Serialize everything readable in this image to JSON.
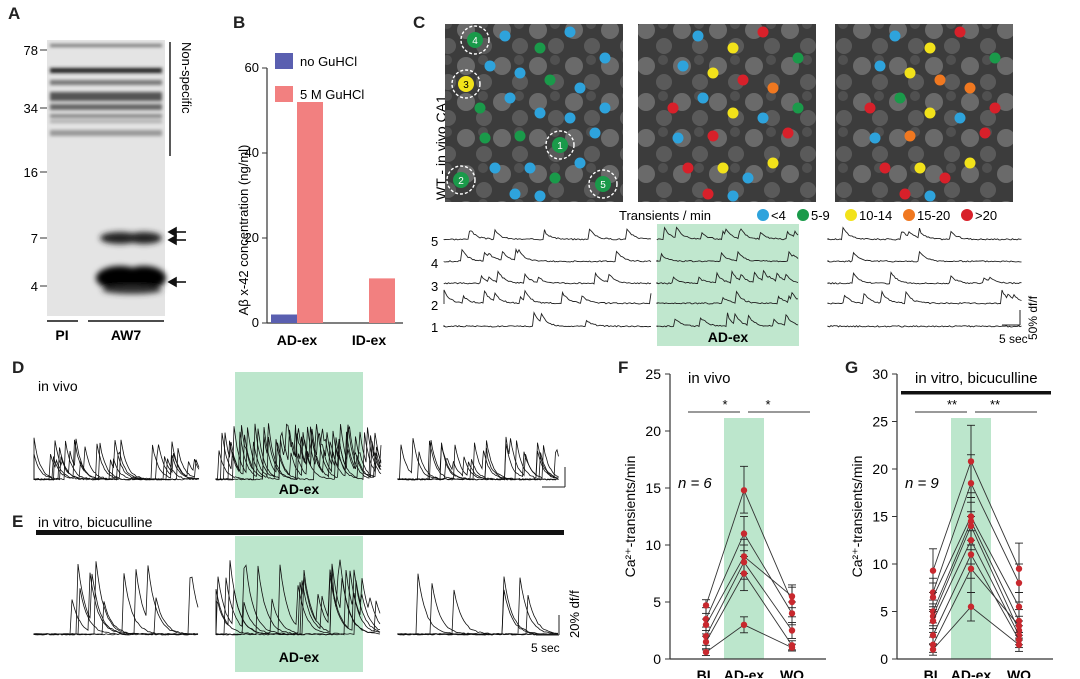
{
  "panel_labels": {
    "A": "A",
    "B": "B",
    "C": "C",
    "D": "D",
    "E": "E",
    "F": "F",
    "G": "G"
  },
  "panel_a": {
    "mw_ticks": [
      "78",
      "34",
      "16",
      "7",
      "4"
    ],
    "nonspecific_label": "Non-specific",
    "lane_labels": [
      "PI",
      "AW7"
    ],
    "arrows": 3
  },
  "panel_b": {
    "ylabel": "Aβ x-42 concentration (ng/ml)",
    "legend": [
      "no GuHCl",
      "5 M GuHCl"
    ],
    "colors": {
      "no": "#5a5fb0",
      "gu": "#f28080"
    },
    "xtick_labels": [
      "AD-ex",
      "ID-ex"
    ],
    "ytick_labels": [
      "0",
      "20",
      "40",
      "60"
    ]
  },
  "panel_c": {
    "side_label": "WT - in vivo CA1",
    "legend_title": "Transients / min",
    "legend": [
      {
        "label": "<4",
        "color": "#2ea3dc"
      },
      {
        "label": "5-9",
        "color": "#1a9a4a"
      },
      {
        "label": "10-14",
        "color": "#f2e21a"
      },
      {
        "label": "15-20",
        "color": "#f07820"
      },
      {
        "label": ">20",
        "color": "#d8202a"
      }
    ],
    "cell_labels": [
      "1",
      "2",
      "3",
      "4",
      "5"
    ],
    "trace_labels": [
      "5",
      "4",
      "3",
      "2",
      "1"
    ],
    "scale_v": "50% df/f",
    "scale_h": "5 sec",
    "shade_label": "AD-ex"
  },
  "panel_d": {
    "title": "in vivo",
    "shade_label": "AD-ex"
  },
  "panel_e": {
    "title": "in vitro, bicuculline",
    "shade_label": "AD-ex",
    "scale_v": "20% df/f",
    "scale_h": "5 sec"
  },
  "chart_data": [
    {
      "type": "bar",
      "categories": [
        "AD-ex",
        "ID-ex"
      ],
      "series": [
        {
          "name": "no GuHCl",
          "values": [
            2,
            0
          ]
        },
        {
          "name": "5 M GuHCl",
          "values": [
            52,
            10.5
          ]
        }
      ],
      "ylabel": "Aβ x-42 concentration (ng/ml)",
      "ylim": [
        0,
        60
      ]
    },
    {
      "type": "line",
      "title": "in vivo",
      "categories": [
        "BL",
        "AD-ex",
        "WO"
      ],
      "ylabel": "Ca²⁺-transients/min",
      "ylim": [
        0,
        25
      ],
      "yticks": [
        "0",
        "5",
        "10",
        "15",
        "20",
        "25"
      ],
      "annotation": "n = 6",
      "significance": [
        "*",
        "*"
      ],
      "lines": [
        [
          4.7,
          14.8,
          5.0
        ],
        [
          3.5,
          11.0,
          4.0
        ],
        [
          3.0,
          9.0,
          5.5
        ],
        [
          2.0,
          8.5,
          2.5
        ],
        [
          1.5,
          7.5,
          1.2
        ],
        [
          0.6,
          3.0,
          1.0
        ]
      ],
      "error_bars": [
        [
          3.5,
          5.2
        ],
        [
          2.5,
          4.5
        ],
        [
          2.0,
          4.0
        ],
        [
          1.2,
          2.8
        ],
        [
          0.8,
          2.2
        ],
        [
          0.3,
          0.9
        ],
        [
          12.8,
          16.9
        ],
        [
          9.5,
          12.5
        ],
        [
          7.5,
          10.5
        ],
        [
          7.0,
          10.0
        ],
        [
          6.0,
          9.0
        ],
        [
          2.3,
          3.7
        ],
        [
          3.7,
          6.3
        ],
        [
          3.0,
          5.0
        ],
        [
          4.5,
          6.5
        ],
        [
          1.8,
          3.2
        ],
        [
          0.8,
          1.6
        ],
        [
          0.7,
          1.3
        ]
      ]
    },
    {
      "type": "line",
      "title": "in vitro, bicuculline",
      "categories": [
        "BL",
        "AD-ex",
        "WO"
      ],
      "ylabel": "Ca²⁺-transients/min",
      "ylim": [
        0,
        30
      ],
      "yticks": [
        "0",
        "5",
        "10",
        "15",
        "20",
        "25",
        "30"
      ],
      "annotation": "n = 9",
      "significance": [
        "**",
        "**"
      ],
      "lines": [
        [
          9.3,
          20.8,
          9.5
        ],
        [
          7.0,
          18.5,
          8.0
        ],
        [
          6.5,
          15.0,
          5.5
        ],
        [
          5.0,
          14.5,
          4.0
        ],
        [
          4.5,
          14.0,
          3.0
        ],
        [
          4.0,
          12.5,
          2.5
        ],
        [
          2.5,
          11.0,
          2.0
        ],
        [
          1.5,
          9.5,
          3.5
        ],
        [
          1.0,
          5.5,
          1.5
        ]
      ],
      "error_bars": [
        [
          7.0,
          11.6
        ],
        [
          5.5,
          8.5
        ],
        [
          5.0,
          8.0
        ],
        [
          3.8,
          6.2
        ],
        [
          3.2,
          5.8
        ],
        [
          2.8,
          5.2
        ],
        [
          1.5,
          3.5
        ],
        [
          0.7,
          2.3
        ],
        [
          0.4,
          1.6
        ],
        [
          17.0,
          24.6
        ],
        [
          15.5,
          21.5
        ],
        [
          12.5,
          17.5
        ],
        [
          12.0,
          17.0
        ],
        [
          11.5,
          16.5
        ],
        [
          10.0,
          15.0
        ],
        [
          8.5,
          13.5
        ],
        [
          7.0,
          12.0
        ],
        [
          4.0,
          7.0
        ],
        [
          7.0,
          12.2
        ],
        [
          6.0,
          10.0
        ],
        [
          4.0,
          7.0
        ],
        [
          2.8,
          5.2
        ],
        [
          2.0,
          4.0
        ],
        [
          1.5,
          3.5
        ],
        [
          1.2,
          2.8
        ],
        [
          2.5,
          4.5
        ],
        [
          0.8,
          2.2
        ]
      ]
    }
  ]
}
